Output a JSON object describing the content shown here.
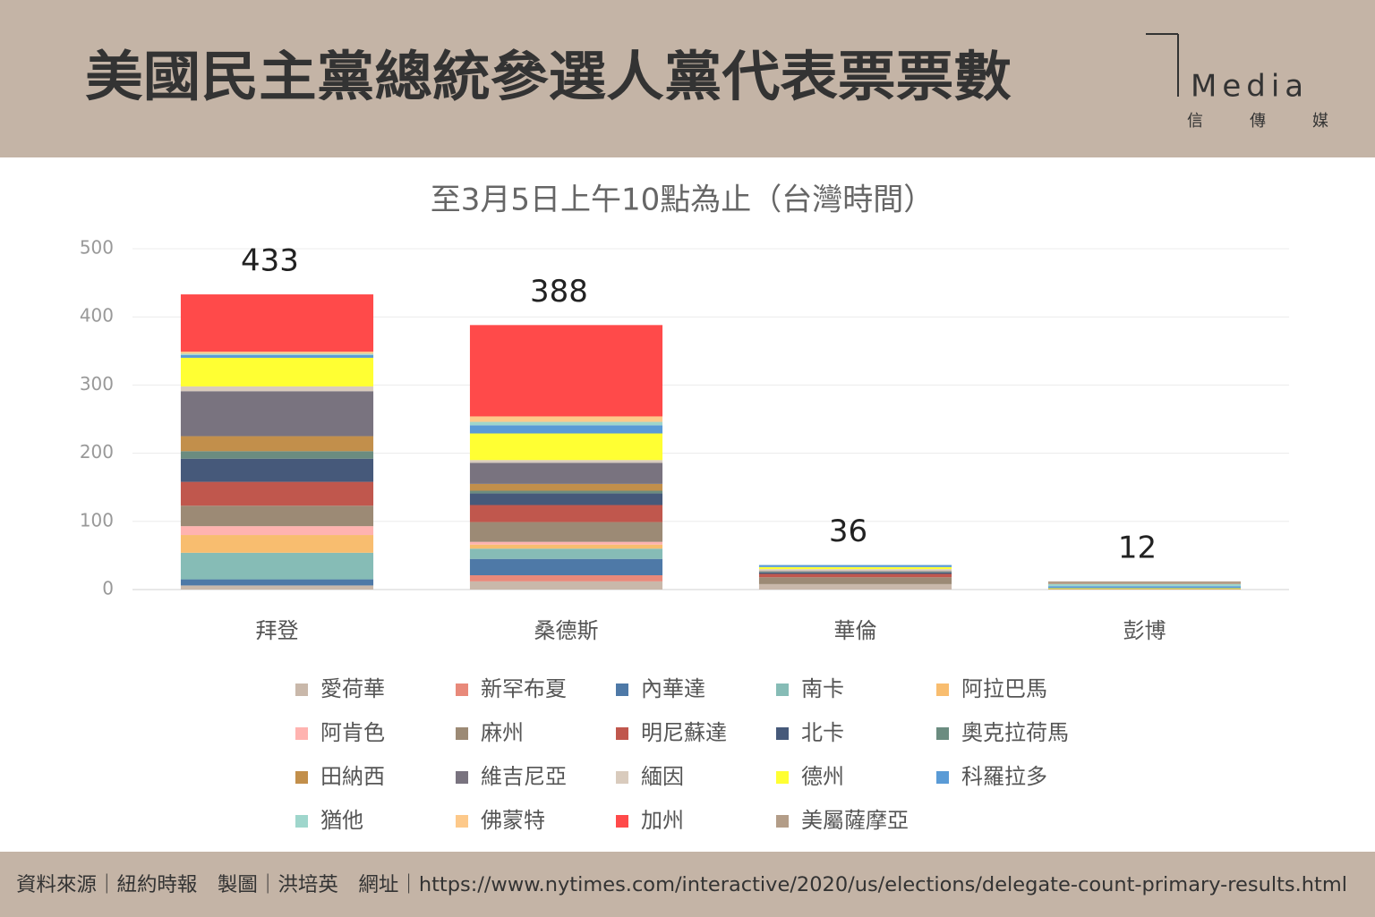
{
  "header": {
    "title": "美國民主黨總統參選人黨代表票票數"
  },
  "logo": {
    "name": "Media",
    "subtitle": "信傳媒"
  },
  "chart_data": {
    "type": "stacked-bar",
    "title": "至3月5日上午10點為止（台灣時間）",
    "categories": [
      "拜登",
      "桑德斯",
      "華倫",
      "彭博"
    ],
    "totals": [
      433,
      388,
      36,
      12
    ],
    "ylim": [
      0,
      500
    ],
    "yticks": [
      0,
      100,
      200,
      300,
      400,
      500
    ],
    "grid": true,
    "series": [
      {
        "name": "愛荷華",
        "color": "#c9b8aa",
        "values": [
          6,
          12,
          8,
          0
        ]
      },
      {
        "name": "新罕布夏",
        "color": "#e8897a",
        "values": [
          0,
          9,
          0,
          0
        ]
      },
      {
        "name": "內華達",
        "color": "#4e79a7",
        "values": [
          9,
          24,
          0,
          0
        ]
      },
      {
        "name": "南卡",
        "color": "#86bcb6",
        "values": [
          39,
          15,
          0,
          0
        ]
      },
      {
        "name": "阿拉巴馬",
        "color": "#f8bd6f",
        "values": [
          26,
          6,
          0,
          0
        ]
      },
      {
        "name": "阿肯色",
        "color": "#ffb3b0",
        "values": [
          13,
          4,
          0,
          0
        ]
      },
      {
        "name": "麻州",
        "color": "#9c8a75",
        "values": [
          30,
          29,
          10,
          0
        ]
      },
      {
        "name": "明尼蘇達",
        "color": "#c0574d",
        "values": [
          35,
          25,
          5,
          0
        ]
      },
      {
        "name": "北卡",
        "color": "#46597a",
        "values": [
          34,
          17,
          2,
          0
        ]
      },
      {
        "name": "奧克拉荷馬",
        "color": "#6b8c80",
        "values": [
          11,
          4,
          1,
          0
        ]
      },
      {
        "name": "田納西",
        "color": "#c28f4b",
        "values": [
          22,
          10,
          0,
          1
        ]
      },
      {
        "name": "維吉尼亞",
        "color": "#79737f",
        "values": [
          66,
          31,
          1,
          0
        ]
      },
      {
        "name": "緬因",
        "color": "#d9cbbd",
        "values": [
          7,
          4,
          3,
          0
        ]
      },
      {
        "name": "德州",
        "color": "#ffff33",
        "values": [
          42,
          39,
          3,
          1
        ]
      },
      {
        "name": "科羅拉多",
        "color": "#5a9bd6",
        "values": [
          4,
          12,
          3,
          3
        ]
      },
      {
        "name": "猶他",
        "color": "#9fd6cc",
        "values": [
          2,
          5,
          0,
          3
        ]
      },
      {
        "name": "佛蒙特",
        "color": "#fdc98a",
        "values": [
          3,
          8,
          0,
          0
        ]
      },
      {
        "name": "加州",
        "color": "#ff4a4a",
        "values": [
          84,
          134,
          0,
          0
        ]
      },
      {
        "name": "美屬薩摩亞",
        "color": "#b39d88",
        "values": [
          0,
          0,
          0,
          4
        ]
      }
    ]
  },
  "footer": {
    "text": "資料來源｜紐約時報　製圖｜洪培英　網址｜https://www.nytimes.com/interactive/2020/us/elections/delegate-count-primary-results.html"
  }
}
